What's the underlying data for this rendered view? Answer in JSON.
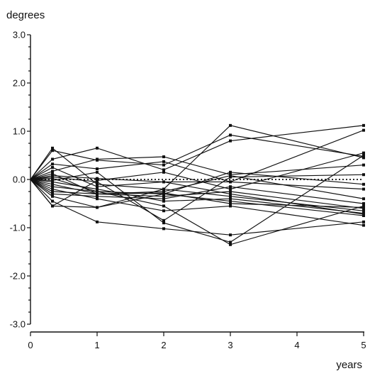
{
  "chart_data": {
    "type": "line",
    "ylabel": "degrees",
    "xlabel": "years",
    "x": [
      0,
      0.33,
      1,
      2,
      3,
      5
    ],
    "xlim": [
      0,
      5
    ],
    "ylim": [
      -3.0,
      3.0
    ],
    "x_ticks": [
      0,
      1,
      2,
      3,
      4,
      5
    ],
    "x_tick_labels": [
      "0",
      "1",
      "2",
      "3",
      "4",
      "5"
    ],
    "y_ticks": [
      3.0,
      2.0,
      1.0,
      0.0,
      -1.0,
      -2.0,
      -3.0
    ],
    "y_tick_labels": [
      "3.0",
      "2.0",
      "1.0",
      "0.0",
      "-1.0",
      "-2.0",
      "-3.0"
    ],
    "grid": false,
    "legend": "none",
    "reference_line": 0.0,
    "series": [
      {
        "values": [
          0,
          0.65,
          -0.1,
          -0.2,
          1.12,
          0.45
        ]
      },
      {
        "values": [
          0,
          0.6,
          0.4,
          0.3,
          0.92,
          0.48
        ]
      },
      {
        "values": [
          0,
          0.42,
          0.65,
          0.2,
          0.8,
          1.12
        ]
      },
      {
        "values": [
          0,
          0.32,
          0.22,
          0.37,
          -0.05,
          1.02
        ]
      },
      {
        "values": [
          0,
          0.17,
          0.42,
          0.47,
          0.1,
          0.3
        ]
      },
      {
        "values": [
          0,
          -0.55,
          -0.02,
          0.15,
          -0.2,
          0.55
        ]
      },
      {
        "values": [
          0,
          0.05,
          -0.05,
          -0.85,
          0.05,
          0.1
        ]
      },
      {
        "values": [
          0,
          -0.02,
          0.15,
          -0.9,
          -1.3,
          0.5
        ]
      },
      {
        "values": [
          0,
          0.02,
          -0.25,
          -0.3,
          0.15,
          -0.1
        ]
      },
      {
        "values": [
          0,
          0.08,
          0.02,
          -0.05,
          -0.05,
          -0.2
        ]
      },
      {
        "values": [
          0,
          -0.1,
          -0.3,
          -0.25,
          0.08,
          -0.4
        ]
      },
      {
        "values": [
          0,
          -0.15,
          -0.25,
          -0.55,
          -1.35,
          -0.55
        ]
      },
      {
        "values": [
          0,
          -0.25,
          -0.3,
          -0.35,
          -0.25,
          -0.6
        ]
      },
      {
        "values": [
          0,
          -0.35,
          -0.58,
          -0.3,
          -0.45,
          -0.75
        ]
      },
      {
        "values": [
          0,
          -0.2,
          -0.4,
          -0.65,
          -0.55,
          -0.95
        ]
      },
      {
        "values": [
          0,
          -0.45,
          -0.88,
          -1.02,
          -1.15,
          -0.88
        ]
      },
      {
        "values": [
          0,
          -0.55,
          -0.58,
          -0.2,
          -0.35,
          -0.65
        ]
      },
      {
        "values": [
          0,
          -0.05,
          -0.2,
          -0.45,
          -0.4,
          -0.7
        ]
      },
      {
        "values": [
          0,
          0.12,
          -0.3,
          -0.28,
          -0.5,
          -0.58
        ]
      },
      {
        "values": [
          0,
          -0.3,
          -0.35,
          -0.4,
          -0.15,
          -0.5
        ]
      },
      {
        "values": [
          0,
          0.25,
          -0.15,
          -0.05,
          -0.3,
          -0.72
        ]
      }
    ]
  }
}
